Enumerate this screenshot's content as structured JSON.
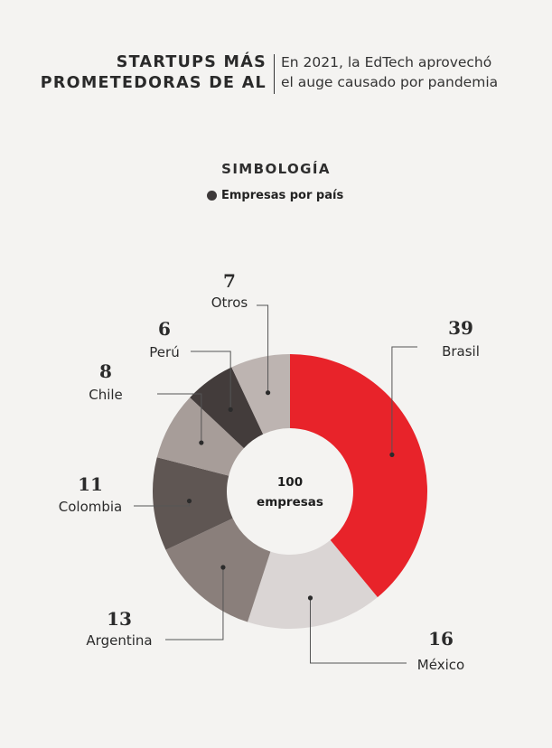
{
  "header": {
    "title_line1": "STARTUPS MÁS",
    "title_line2": "PROMETEDORAS DE AL",
    "subtitle_line1": "En 2021, la EdTech aprovechó",
    "subtitle_line2": "el auge causado por pandemia"
  },
  "legend": {
    "title": "SIMBOLOGÍA",
    "item": "Empresas por país",
    "icon": "bullet-dot"
  },
  "chart_data": {
    "type": "pie",
    "donut": true,
    "center_label": [
      "100",
      "empresas"
    ],
    "total": 100,
    "slices": [
      {
        "label": "Brasil",
        "value": 39,
        "color": "#e8232a"
      },
      {
        "label": "México",
        "value": 16,
        "color": "#dad5d4"
      },
      {
        "label": "Argentina",
        "value": 13,
        "color": "#8a7f7b"
      },
      {
        "label": "Colombia",
        "value": 11,
        "color": "#5f5653"
      },
      {
        "label": "Chile",
        "value": 8,
        "color": "#a79d99"
      },
      {
        "label": "Perú",
        "value": 6,
        "color": "#433c3b"
      },
      {
        "label": "Otros",
        "value": 7,
        "color": "#bdb4b1"
      }
    ]
  }
}
